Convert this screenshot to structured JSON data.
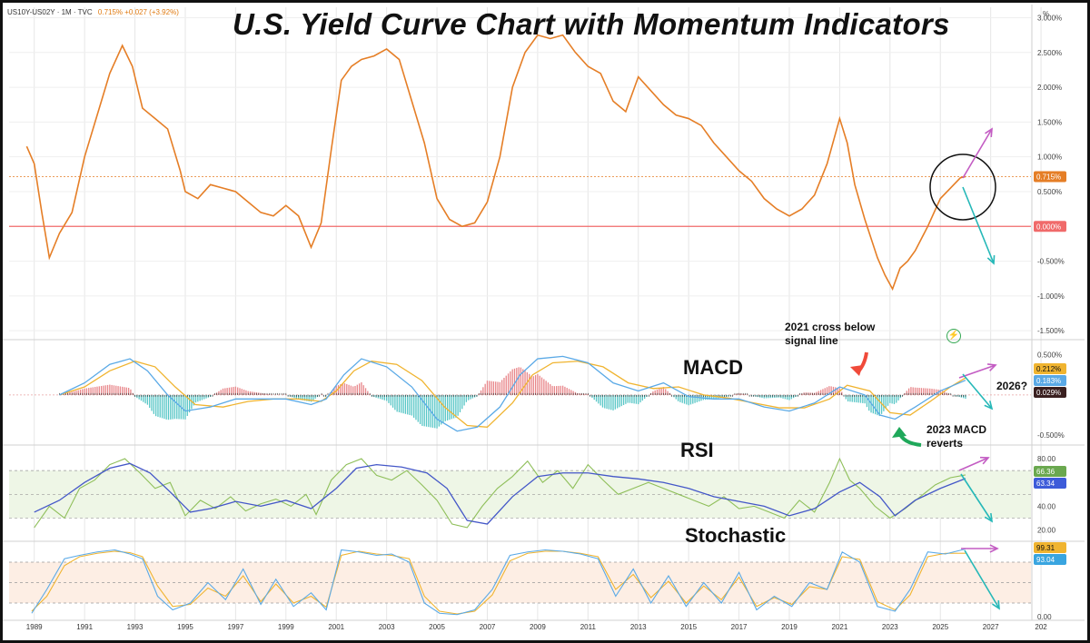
{
  "header": {
    "symbol": "US10Y-US02Y · 1M · TVC",
    "change": "0.715% +0.027 (+3.92%)"
  },
  "title": "U.S. Yield Curve Chart with Momentum Indicators",
  "unit_label": "%",
  "panel_labels": {
    "macd": "MACD",
    "rsi": "RSI",
    "stochastic": "Stochastic"
  },
  "annotations": {
    "cross_line1": "2021 cross below",
    "cross_line2": "signal line",
    "revert_line1": "2023 MACD",
    "revert_line2": "reverts",
    "question": "2026?"
  },
  "colors": {
    "spread_line": "#e57e26",
    "zero_line": "#f06a6a",
    "macd_line": "#5aa9e6",
    "signal_line": "#f0b430",
    "hist_pos": "#e8868a",
    "hist_neg": "#57c6c6",
    "rsi_line": "#8fbf5a",
    "rsi_ma": "#4457c8",
    "stoch_k": "#5aa9e6",
    "stoch_d": "#f0b430",
    "arrow_up": "#c35cc3",
    "arrow_down": "#26b8b8",
    "red_arrow": "#f04a3a",
    "green_arrow": "#1fa85a"
  },
  "chart_data": [
    {
      "type": "line",
      "panel": "yield_spread",
      "title": "U.S. Yield Curve Chart with Momentum Indicators",
      "x_unit": "year",
      "xlim": [
        1988.0,
        2028.6
      ],
      "ylim": [
        -1.55,
        3.15
      ],
      "y_ticks": [
        "3.000%",
        "2.500%",
        "2.000%",
        "1.500%",
        "1.000%",
        "0.500%",
        "-0.500%",
        "-1.000%",
        "-1.500%"
      ],
      "last_value_label": "0.715%",
      "zero_label": "0.000%",
      "series": [
        {
          "x": [
            1988.7,
            1989.0,
            1989.3,
            1989.6,
            1990.0,
            1990.5,
            1991.0,
            1991.5,
            1992.0,
            1992.5,
            1992.9,
            1993.3,
            1993.8,
            1994.3,
            1994.8,
            1995.0,
            1995.5,
            1996.0,
            1996.5,
            1997.0,
            1997.5,
            1998.0,
            1998.5,
            1999.0,
            1999.5,
            2000.0,
            2000.4,
            2000.8,
            2001.2,
            2001.6,
            2002.0,
            2002.5,
            2003.0,
            2003.5,
            2004.0,
            2004.5,
            2005.0,
            2005.5,
            2006.0,
            2006.5,
            2007.0,
            2007.5,
            2008.0,
            2008.5,
            2009.0,
            2009.5,
            2010.0,
            2010.5,
            2011.0,
            2011.5,
            2012.0,
            2012.5,
            2013.0,
            2013.5,
            2014.0,
            2014.5,
            2015.0,
            2015.5,
            2016.0,
            2016.5,
            2017.0,
            2017.5,
            2018.0,
            2018.5,
            2019.0,
            2019.5,
            2020.0,
            2020.5,
            2021.0,
            2021.3,
            2021.6,
            2022.0,
            2022.5,
            2022.8,
            2023.1,
            2023.4,
            2023.7,
            2024.0,
            2024.5,
            2025.0,
            2025.4,
            2025.8,
            2026.0
          ],
          "y": [
            1.15,
            0.9,
            0.2,
            -0.45,
            -0.1,
            0.2,
            1.0,
            1.6,
            2.2,
            2.6,
            2.3,
            1.7,
            1.55,
            1.4,
            0.8,
            0.5,
            0.4,
            0.6,
            0.55,
            0.5,
            0.35,
            0.2,
            0.15,
            0.3,
            0.15,
            -0.3,
            0.05,
            1.1,
            2.1,
            2.3,
            2.4,
            2.45,
            2.55,
            2.4,
            1.8,
            1.2,
            0.4,
            0.1,
            0.0,
            0.05,
            0.35,
            1.0,
            2.0,
            2.5,
            2.75,
            2.7,
            2.75,
            2.5,
            2.3,
            2.2,
            1.8,
            1.65,
            2.15,
            1.95,
            1.75,
            1.6,
            1.55,
            1.45,
            1.2,
            1.0,
            0.8,
            0.65,
            0.4,
            0.25,
            0.15,
            0.25,
            0.45,
            0.9,
            1.55,
            1.2,
            0.6,
            0.1,
            -0.45,
            -0.7,
            -0.9,
            -0.6,
            -0.5,
            -0.35,
            0.0,
            0.4,
            0.55,
            0.7,
            0.715
          ]
        }
      ]
    },
    {
      "type": "bar",
      "panel": "macd",
      "ylim": [
        -0.6,
        0.62
      ],
      "y_ticks": [
        "0.500%",
        "-0.500%"
      ],
      "value_labels": [
        "0.212%",
        "0.183%",
        "0.029%"
      ],
      "series": [
        {
          "name": "macd",
          "x": [
            1990.0,
            1991.0,
            1992.0,
            1992.8,
            1993.5,
            1994.3,
            1995.0,
            1996.0,
            1997.0,
            1998.0,
            1999.0,
            2000.0,
            2000.6,
            2001.3,
            2002.0,
            2003.0,
            2004.0,
            2005.0,
            2005.8,
            2006.6,
            2007.5,
            2008.3,
            2009.0,
            2010.0,
            2011.0,
            2012.0,
            2013.0,
            2014.0,
            2015.0,
            2016.0,
            2017.0,
            2018.0,
            2019.0,
            2020.0,
            2021.0,
            2022.0,
            2022.6,
            2023.2,
            2024.0,
            2025.0,
            2026.0
          ],
          "y": [
            0.0,
            0.15,
            0.38,
            0.45,
            0.3,
            0.0,
            -0.2,
            -0.15,
            -0.05,
            -0.05,
            -0.05,
            -0.12,
            -0.05,
            0.25,
            0.45,
            0.35,
            0.1,
            -0.3,
            -0.45,
            -0.4,
            -0.15,
            0.25,
            0.45,
            0.48,
            0.4,
            0.15,
            0.05,
            0.15,
            -0.02,
            -0.05,
            -0.05,
            -0.15,
            -0.2,
            -0.1,
            0.1,
            0.0,
            -0.25,
            -0.3,
            -0.15,
            0.05,
            0.183
          ]
        },
        {
          "name": "signal",
          "x": [
            1990.0,
            1991.0,
            1992.0,
            1993.0,
            1993.8,
            1994.6,
            1995.4,
            1996.5,
            1997.5,
            1998.5,
            1999.5,
            2000.4,
            2001.0,
            2001.7,
            2002.4,
            2003.4,
            2004.4,
            2005.3,
            2006.2,
            2007.0,
            2008.0,
            2008.8,
            2009.6,
            2010.6,
            2011.6,
            2012.6,
            2013.6,
            2014.6,
            2015.6,
            2016.6,
            2017.6,
            2018.6,
            2019.6,
            2020.6,
            2021.3,
            2022.2,
            2023.0,
            2023.8,
            2024.6,
            2025.4,
            2026.0
          ],
          "y": [
            0.0,
            0.1,
            0.3,
            0.42,
            0.35,
            0.1,
            -0.12,
            -0.15,
            -0.08,
            -0.05,
            -0.05,
            -0.08,
            0.05,
            0.3,
            0.42,
            0.38,
            0.18,
            -0.15,
            -0.38,
            -0.4,
            -0.1,
            0.25,
            0.4,
            0.42,
            0.35,
            0.15,
            0.08,
            0.1,
            0.0,
            -0.04,
            -0.1,
            -0.16,
            -0.16,
            -0.05,
            0.12,
            0.05,
            -0.22,
            -0.25,
            -0.08,
            0.1,
            0.212
          ]
        }
      ]
    },
    {
      "type": "line",
      "panel": "rsi",
      "ylim": [
        12,
        90
      ],
      "y_ticks": [
        "80.00",
        "60.00",
        "40.00",
        "20.00"
      ],
      "value_labels": [
        "66.36",
        "63.34"
      ],
      "series": [
        {
          "name": "rsi",
          "x": [
            1989.0,
            1989.6,
            1990.2,
            1990.8,
            1991.4,
            1992.0,
            1992.6,
            1993.2,
            1993.8,
            1994.4,
            1995.0,
            1995.6,
            1996.2,
            1996.8,
            1997.4,
            1998.0,
            1998.6,
            1999.2,
            1999.8,
            2000.2,
            2000.8,
            2001.4,
            2002.0,
            2002.6,
            2003.2,
            2003.8,
            2004.4,
            2005.0,
            2005.6,
            2006.2,
            2006.8,
            2007.4,
            2008.0,
            2008.6,
            2009.2,
            2009.8,
            2010.4,
            2011.0,
            2011.6,
            2012.2,
            2012.8,
            2013.4,
            2014.0,
            2014.6,
            2015.2,
            2015.8,
            2016.4,
            2017.0,
            2017.6,
            2018.2,
            2018.8,
            2019.4,
            2020.0,
            2020.6,
            2021.0,
            2021.4,
            2021.8,
            2022.4,
            2023.0,
            2023.6,
            2024.2,
            2024.8,
            2025.4,
            2026.0
          ],
          "y": [
            22,
            40,
            30,
            55,
            62,
            75,
            80,
            68,
            55,
            60,
            32,
            45,
            38,
            48,
            36,
            42,
            46,
            40,
            50,
            33,
            62,
            75,
            80,
            66,
            62,
            70,
            58,
            45,
            25,
            22,
            40,
            55,
            65,
            78,
            60,
            70,
            55,
            75,
            62,
            50,
            55,
            60,
            55,
            50,
            45,
            40,
            48,
            38,
            40,
            35,
            30,
            45,
            35,
            60,
            80,
            62,
            55,
            40,
            30,
            38,
            48,
            58,
            64,
            66.36
          ]
        },
        {
          "name": "rsi_ma",
          "x": [
            1989.0,
            1990.0,
            1991.0,
            1992.0,
            1992.8,
            1993.6,
            1994.4,
            1995.2,
            1996.0,
            1997.0,
            1998.0,
            1999.0,
            2000.0,
            2001.0,
            2001.8,
            2002.6,
            2003.6,
            2004.6,
            2005.4,
            2006.2,
            2007.0,
            2008.0,
            2009.0,
            2010.0,
            2011.0,
            2012.0,
            2013.0,
            2014.0,
            2015.0,
            2016.0,
            2017.0,
            2018.0,
            2019.0,
            2020.0,
            2021.0,
            2021.8,
            2022.6,
            2023.2,
            2024.0,
            2025.0,
            2026.0
          ],
          "y": [
            35,
            45,
            60,
            72,
            76,
            68,
            52,
            35,
            38,
            44,
            40,
            45,
            38,
            55,
            72,
            75,
            73,
            68,
            55,
            28,
            25,
            48,
            65,
            68,
            68,
            65,
            63,
            60,
            55,
            48,
            44,
            40,
            32,
            38,
            52,
            60,
            48,
            32,
            45,
            55,
            63.34
          ]
        }
      ]
    },
    {
      "type": "line",
      "panel": "stochastic",
      "ylim": [
        -4,
        108
      ],
      "y_ticks": [
        "0.00"
      ],
      "value_labels": [
        "99.31",
        "93.04"
      ],
      "series": [
        {
          "name": "%K",
          "x": [
            1988.9,
            1989.5,
            1990.2,
            1990.8,
            1991.5,
            1992.2,
            1992.8,
            1993.3,
            1993.9,
            1994.5,
            1995.2,
            1995.9,
            1996.6,
            1997.3,
            1998.0,
            1998.6,
            1999.3,
            2000.0,
            2000.6,
            2001.2,
            2001.9,
            2002.6,
            2003.2,
            2003.9,
            2004.5,
            2005.1,
            2005.8,
            2006.5,
            2007.2,
            2007.9,
            2008.6,
            2009.3,
            2010.0,
            2010.7,
            2011.4,
            2012.1,
            2012.8,
            2013.5,
            2014.2,
            2014.9,
            2015.6,
            2016.3,
            2017.0,
            2017.7,
            2018.4,
            2019.1,
            2019.8,
            2020.5,
            2021.1,
            2021.8,
            2022.5,
            2023.2,
            2023.8,
            2024.5,
            2025.2,
            2026.0
          ],
          "y": [
            5,
            40,
            85,
            90,
            95,
            98,
            92,
            85,
            30,
            10,
            20,
            50,
            25,
            70,
            18,
            55,
            15,
            35,
            10,
            98,
            95,
            90,
            92,
            80,
            20,
            5,
            3,
            10,
            40,
            90,
            95,
            98,
            96,
            92,
            85,
            30,
            70,
            20,
            60,
            15,
            50,
            20,
            65,
            10,
            30,
            15,
            50,
            40,
            95,
            80,
            15,
            8,
            40,
            95,
            92,
            99.31
          ]
        },
        {
          "name": "%D",
          "x": [
            1988.9,
            1989.5,
            1990.2,
            1990.8,
            1991.5,
            1992.2,
            1992.8,
            1993.3,
            1993.9,
            1994.5,
            1995.2,
            1995.9,
            1996.6,
            1997.3,
            1998.0,
            1998.6,
            1999.3,
            2000.0,
            2000.6,
            2001.2,
            2001.9,
            2002.6,
            2003.2,
            2003.9,
            2004.5,
            2005.1,
            2005.8,
            2006.5,
            2007.2,
            2007.9,
            2008.6,
            2009.3,
            2010.0,
            2010.7,
            2011.4,
            2012.1,
            2012.8,
            2013.5,
            2014.2,
            2014.9,
            2015.6,
            2016.3,
            2017.0,
            2017.7,
            2018.4,
            2019.1,
            2019.8,
            2020.5,
            2021.1,
            2021.8,
            2022.5,
            2023.2,
            2023.8,
            2024.5,
            2025.2,
            2026.0
          ],
          "y": [
            8,
            30,
            75,
            88,
            93,
            96,
            94,
            88,
            45,
            15,
            18,
            42,
            30,
            60,
            22,
            48,
            20,
            30,
            14,
            90,
            96,
            92,
            90,
            85,
            30,
            8,
            4,
            8,
            32,
            82,
            93,
            96,
            96,
            93,
            88,
            40,
            62,
            28,
            52,
            20,
            45,
            25,
            58,
            15,
            28,
            18,
            44,
            40,
            88,
            84,
            22,
            10,
            32,
            88,
            93,
            93.04
          ]
        }
      ]
    }
  ],
  "x_axis": {
    "tick_labels": [
      "1989",
      "1991",
      "1993",
      "1995",
      "1997",
      "1999",
      "2001",
      "2003",
      "2005",
      "2007",
      "2009",
      "2011",
      "2013",
      "2015",
      "2017",
      "2019",
      "2021",
      "2023",
      "2025",
      "2027",
      "202"
    ]
  }
}
